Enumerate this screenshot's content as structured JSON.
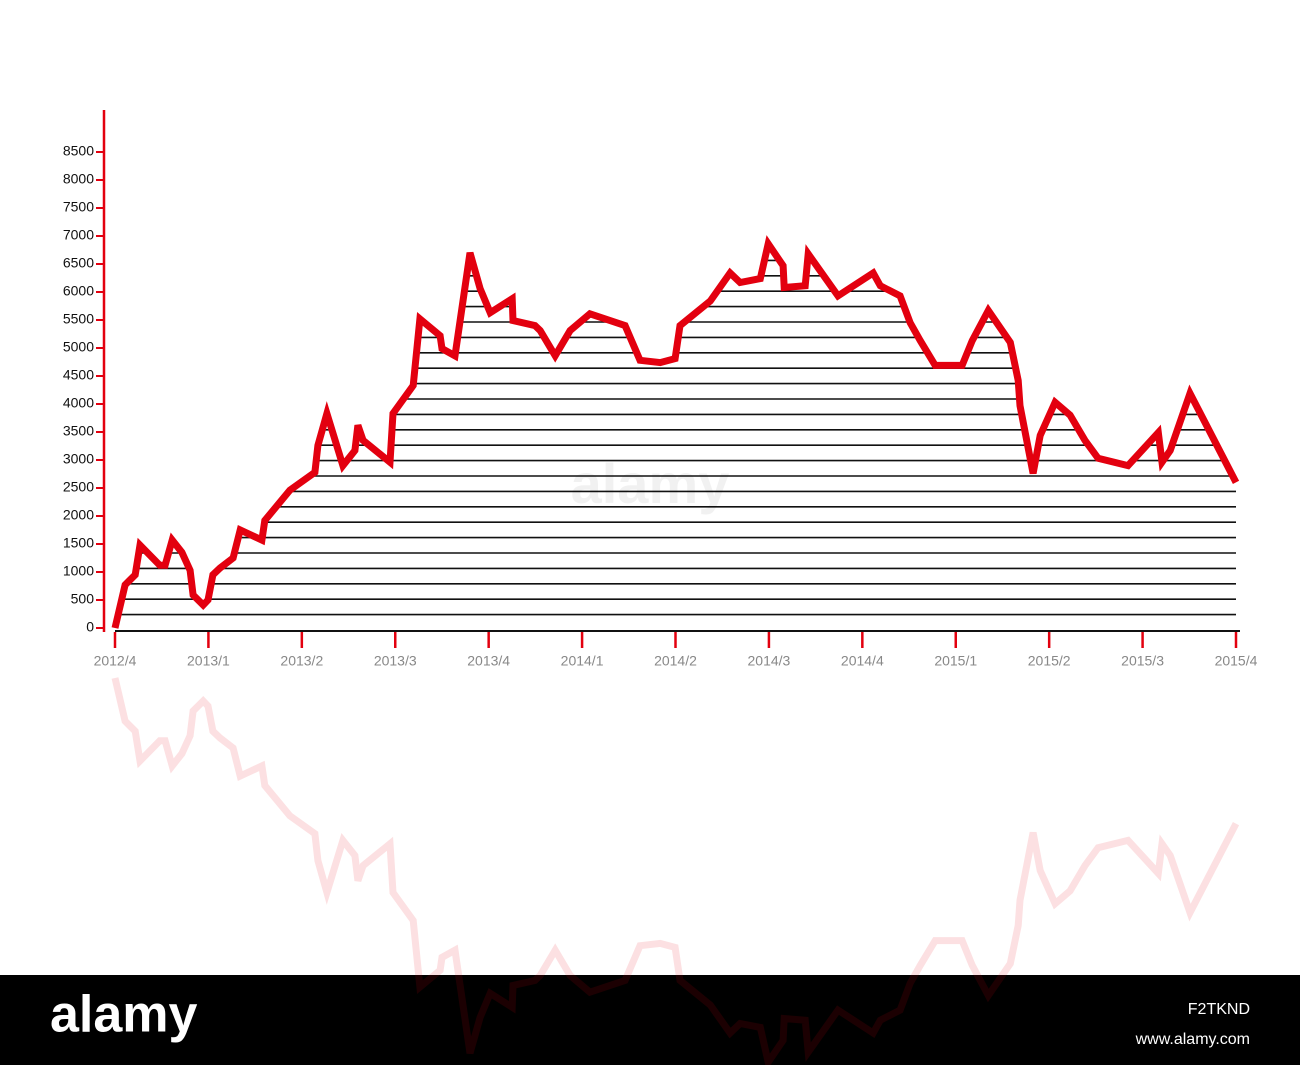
{
  "chart_data": {
    "type": "line",
    "x": [
      2012.75,
      2012.777,
      2012.804,
      2012.817,
      2012.87,
      2012.884,
      2012.903,
      2012.929,
      2012.951,
      2012.959,
      2012.986,
      2012.999,
      2013.012,
      2013.031,
      2013.066,
      2013.085,
      2013.143,
      2013.151,
      2013.218,
      2013.285,
      2013.293,
      2013.317,
      2013.36,
      2013.392,
      2013.4,
      2013.414,
      2013.486,
      2013.494,
      2013.548,
      2013.566,
      2013.62,
      2013.625,
      2013.66,
      2013.7,
      2013.727,
      2013.754,
      2013.813,
      2013.815,
      2013.874,
      2013.888,
      2013.928,
      2013.968,
      2014.021,
      2014.115,
      2014.155,
      2014.209,
      2014.249,
      2014.262,
      2014.343,
      2014.396,
      2014.423,
      2014.477,
      2014.498,
      2014.538,
      2014.541,
      2014.597,
      2014.605,
      2014.685,
      2014.779,
      2014.798,
      2014.851,
      2014.878,
      2014.905,
      2014.945,
      2015.017,
      2015.044,
      2015.087,
      2015.146,
      2015.167,
      2015.172,
      2015.207,
      2015.226,
      2015.266,
      2015.306,
      2015.346,
      2015.381,
      2015.461,
      2015.542,
      2015.552,
      2015.574,
      2015.627,
      2015.75
    ],
    "series": [
      {
        "color": "#e3000f",
        "values": [
          0,
          770,
          950,
          1480,
          1120,
          1120,
          1570,
          1350,
          1030,
          590,
          410,
          500,
          950,
          1070,
          1250,
          1750,
          1570,
          1920,
          2460,
          2780,
          3260,
          3830,
          2900,
          3170,
          3620,
          3350,
          2960,
          3830,
          4330,
          5520,
          5220,
          4990,
          4860,
          6700,
          6060,
          5630,
          5880,
          5490,
          5400,
          5310,
          4860,
          5310,
          5610,
          5400,
          4780,
          4740,
          4810,
          5400,
          5840,
          6340,
          6170,
          6240,
          6860,
          6470,
          6080,
          6110,
          6680,
          5930,
          6340,
          6110,
          5930,
          5450,
          5130,
          4690,
          4690,
          5130,
          5670,
          5100,
          4420,
          3970,
          2760,
          3440,
          4030,
          3800,
          3350,
          3030,
          2900,
          3490,
          2960,
          3170,
          4190,
          2600
        ]
      }
    ],
    "xlim": [
      2012.75,
      2015.75
    ],
    "xticks": [
      {
        "value": 2012.75,
        "label": "2012/4"
      },
      {
        "value": 2013.0,
        "label": "2013/1"
      },
      {
        "value": 2013.25,
        "label": "2013/2"
      },
      {
        "value": 2013.5,
        "label": "2013/3"
      },
      {
        "value": 2013.75,
        "label": "2013/4"
      },
      {
        "value": 2014.0,
        "label": "2014/1"
      },
      {
        "value": 2014.25,
        "label": "2014/2"
      },
      {
        "value": 2014.5,
        "label": "2014/3"
      },
      {
        "value": 2014.75,
        "label": "2014/4"
      },
      {
        "value": 2015.0,
        "label": "2015/1"
      },
      {
        "value": 2015.25,
        "label": "2015/2"
      },
      {
        "value": 2015.5,
        "label": "2015/3"
      },
      {
        "value": 2015.75,
        "label": "2015/4"
      }
    ],
    "ylim": [
      0,
      9250
    ],
    "yticks": [
      0,
      500,
      1000,
      1500,
      2000,
      2500,
      3000,
      3500,
      4000,
      4500,
      5000,
      5500,
      6000,
      6500,
      7000,
      7500,
      8000,
      8500
    ],
    "axis_color": "#e3000f",
    "fill_pattern": "horizontal-lines"
  },
  "watermark": "alamy",
  "footer": {
    "brand": "alamy",
    "image_id": "F2TKND",
    "url": "www.alamy.com"
  }
}
